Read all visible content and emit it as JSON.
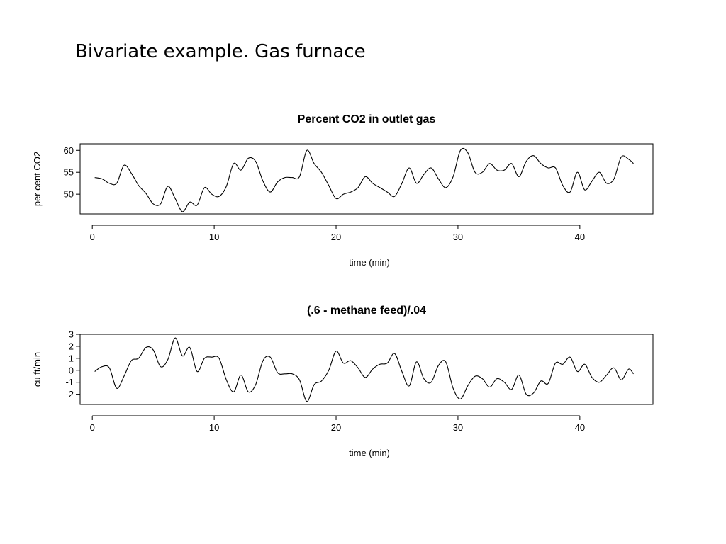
{
  "slide": {
    "title": "Bivariate example. Gas furnace"
  },
  "chart_data": [
    {
      "type": "line",
      "title": "Percent CO2 in outlet gas",
      "xlabel": "time (min)",
      "ylabel": "per cent CO2",
      "xlim": [
        -1.0,
        46.0
      ],
      "ylim": [
        45.5,
        61.5
      ],
      "xticks": [
        0,
        10,
        20,
        30,
        40
      ],
      "yticks": [
        50,
        55,
        60
      ],
      "grid": false,
      "series": [
        {
          "x": [
            0.2,
            0.8,
            1.4,
            2.0,
            2.6,
            3.2,
            3.8,
            4.4,
            5.0,
            5.6,
            6.2,
            6.8,
            7.4,
            8.0,
            8.6,
            9.2,
            9.8,
            10.4,
            11.0,
            11.6,
            12.2,
            12.8,
            13.4,
            14.0,
            14.6,
            15.2,
            15.8,
            16.4,
            17.0,
            17.6,
            18.2,
            18.8,
            19.4,
            20.0,
            20.6,
            21.2,
            21.8,
            22.4,
            23.0,
            23.6,
            24.2,
            24.8,
            25.4,
            26.0,
            26.6,
            27.2,
            27.8,
            28.4,
            29.0,
            29.6,
            30.2,
            30.8,
            31.4,
            32.0,
            32.6,
            33.2,
            33.8,
            34.4,
            35.0,
            35.6,
            36.2,
            36.8,
            37.4,
            38.0,
            38.6,
            39.2,
            39.8,
            40.4,
            41.0,
            41.6,
            42.2,
            42.8,
            43.4,
            44.0,
            44.4
          ],
          "values": [
            53.8,
            53.5,
            52.5,
            52.5,
            56.6,
            54.8,
            52.0,
            50.2,
            47.8,
            47.8,
            51.8,
            49.0,
            46.0,
            48.2,
            47.5,
            51.5,
            50.0,
            49.5,
            51.8,
            57.0,
            55.5,
            58.2,
            57.5,
            53.0,
            50.5,
            52.8,
            53.8,
            53.8,
            54.0,
            60.0,
            57.0,
            55.0,
            52.0,
            49.0,
            50.0,
            50.5,
            51.5,
            54.0,
            52.5,
            51.5,
            50.5,
            49.5,
            52.5,
            56.0,
            52.5,
            54.5,
            56.0,
            53.5,
            51.5,
            54.0,
            60.0,
            59.5,
            55.0,
            55.0,
            57.0,
            55.5,
            55.5,
            57.0,
            54.0,
            57.5,
            58.8,
            57.0,
            56.0,
            56.0,
            52.0,
            50.5,
            55.0,
            51.0,
            53.0,
            55.0,
            52.5,
            53.5,
            58.5,
            58.0,
            57.0
          ]
        }
      ]
    },
    {
      "type": "line",
      "title": "(.6 - methane feed)/.04",
      "xlabel": "time (min)",
      "ylabel": "cu ft/min",
      "xlim": [
        -1.0,
        46.0
      ],
      "ylim": [
        -2.85,
        3.0
      ],
      "xticks": [
        0,
        10,
        20,
        30,
        40
      ],
      "yticks": [
        -2,
        -1,
        0,
        1,
        2,
        3
      ],
      "grid": false,
      "series": [
        {
          "x": [
            0.2,
            0.8,
            1.4,
            2.0,
            2.6,
            3.2,
            3.8,
            4.4,
            5.0,
            5.6,
            6.2,
            6.8,
            7.4,
            8.0,
            8.6,
            9.2,
            9.8,
            10.4,
            11.0,
            11.6,
            12.2,
            12.8,
            13.4,
            14.0,
            14.6,
            15.2,
            15.8,
            16.4,
            17.0,
            17.6,
            18.2,
            18.8,
            19.4,
            20.0,
            20.6,
            21.2,
            21.8,
            22.4,
            23.0,
            23.6,
            24.2,
            24.8,
            25.4,
            26.0,
            26.6,
            27.2,
            27.8,
            28.4,
            29.0,
            29.6,
            30.2,
            30.8,
            31.4,
            32.0,
            32.6,
            33.2,
            33.8,
            34.4,
            35.0,
            35.6,
            36.2,
            36.8,
            37.4,
            38.0,
            38.6,
            39.2,
            39.8,
            40.4,
            41.0,
            41.6,
            42.2,
            42.8,
            43.4,
            44.0,
            44.4
          ],
          "values": [
            -0.1,
            0.3,
            0.2,
            -1.5,
            -0.5,
            0.8,
            1.0,
            1.9,
            1.7,
            0.3,
            0.9,
            2.7,
            1.2,
            1.9,
            -0.1,
            1.0,
            1.1,
            1.0,
            -0.8,
            -1.8,
            -0.4,
            -1.8,
            -1.2,
            0.8,
            1.1,
            -0.2,
            -0.3,
            -0.3,
            -0.8,
            -2.6,
            -1.2,
            -0.9,
            0.0,
            1.6,
            0.6,
            0.8,
            0.2,
            -0.6,
            0.1,
            0.5,
            0.6,
            1.4,
            -0.1,
            -1.3,
            0.7,
            -0.7,
            -1.0,
            0.4,
            0.7,
            -1.5,
            -2.4,
            -1.3,
            -0.5,
            -0.7,
            -1.4,
            -0.7,
            -1.0,
            -1.6,
            -0.4,
            -2.0,
            -1.9,
            -0.9,
            -1.1,
            0.6,
            0.5,
            1.1,
            -0.1,
            0.5,
            -0.6,
            -1.0,
            -0.4,
            0.2,
            -0.8,
            0.1,
            -0.3
          ]
        }
      ]
    }
  ]
}
